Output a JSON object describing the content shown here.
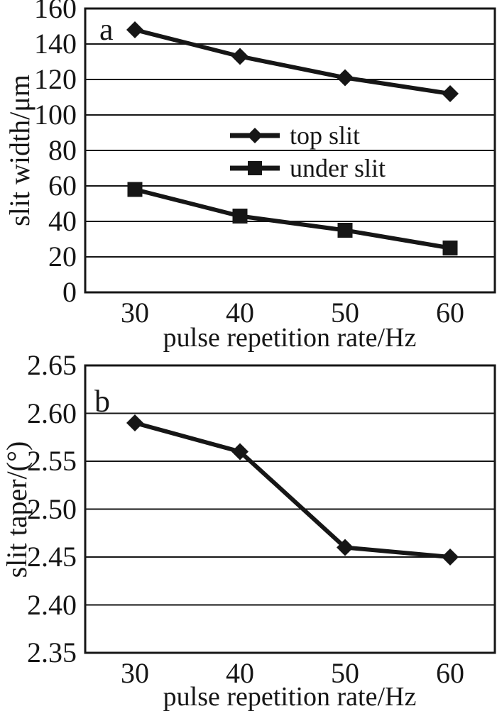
{
  "background_color": "#ffffff",
  "ink_color": "#161616",
  "chart_data": [
    {
      "type": "line",
      "panel_label": "a",
      "xlabel": "pulse repetition rate/Hz",
      "ylabel": "slit width/μm",
      "x": [
        30,
        40,
        50,
        60
      ],
      "x_tick_labels": [
        "30",
        "40",
        "50",
        "60"
      ],
      "ylim": [
        0,
        160
      ],
      "y_ticks": [
        0,
        20,
        40,
        60,
        80,
        100,
        120,
        140,
        160
      ],
      "y_tick_labels": [
        "0",
        "20",
        "40",
        "60",
        "80",
        "100",
        "120",
        "140",
        "160"
      ],
      "grid": "horizontal-gridlines",
      "legend_position": "inside-center",
      "series": [
        {
          "name": "top slit",
          "marker": "diamond",
          "values": [
            148,
            133,
            121,
            112
          ]
        },
        {
          "name": "under slit",
          "marker": "square",
          "values": [
            58,
            43,
            35,
            25
          ]
        }
      ]
    },
    {
      "type": "line",
      "panel_label": "b",
      "xlabel": "pulse repetition rate/Hz",
      "ylabel": "slit taper/(°)",
      "x": [
        30,
        40,
        50,
        60
      ],
      "x_tick_labels": [
        "30",
        "40",
        "50",
        "60"
      ],
      "ylim": [
        2.35,
        2.65
      ],
      "y_ticks": [
        2.35,
        2.4,
        2.45,
        2.5,
        2.55,
        2.6,
        2.65
      ],
      "y_tick_labels": [
        "2.35",
        "2.40",
        "2.45",
        "2.50",
        "2.55",
        "2.60",
        "2.65"
      ],
      "grid": "horizontal-gridlines",
      "legend_position": "none",
      "series": [
        {
          "marker": "diamond",
          "values": [
            2.59,
            2.56,
            2.46,
            2.45
          ]
        }
      ]
    }
  ]
}
